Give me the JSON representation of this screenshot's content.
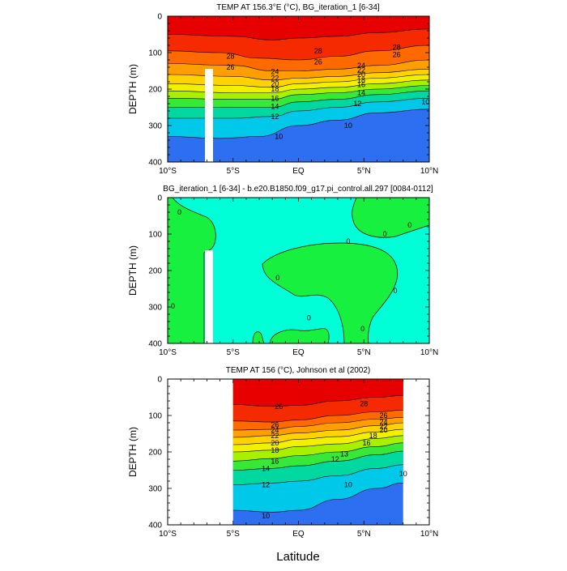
{
  "figure": {
    "xlabel": "Latitude",
    "xticks": [
      "10°S",
      "5°S",
      "EQ",
      "5°N",
      "10°N"
    ],
    "yticks": [
      "0",
      "100",
      "200",
      "300",
      "400"
    ]
  },
  "chart_data": [
    {
      "type": "contour",
      "title": "TEMP AT 156.3°E (°C), BG_iteration_1 [6-34]",
      "ylabel": "DEPTH (m)",
      "xlim": [
        -10,
        10
      ],
      "ylim": [
        400,
        0
      ],
      "isotherms": [
        {
          "level": 28,
          "points": [
            [
              -10,
              50
            ],
            [
              -5,
              55
            ],
            [
              -2,
              65
            ],
            [
              0,
              60
            ],
            [
              3,
              55
            ],
            [
              6,
              45
            ],
            [
              10,
              35
            ]
          ]
        },
        {
          "level": 26,
          "points": [
            [
              -10,
              95
            ],
            [
              -6,
              100
            ],
            [
              -3,
              115
            ],
            [
              0,
              120
            ],
            [
              3,
              110
            ],
            [
              6,
              95
            ],
            [
              10,
              80
            ]
          ]
        },
        {
          "level": 24,
          "points": [
            [
              -10,
              130
            ],
            [
              -5,
              135
            ],
            [
              -2,
              150
            ],
            [
              0,
              150
            ],
            [
              3,
              145
            ],
            [
              6,
              135
            ],
            [
              10,
              120
            ]
          ]
        },
        {
          "level": 22,
          "points": [
            [
              -10,
              160
            ],
            [
              -5,
              165
            ],
            [
              -2,
              175
            ],
            [
              0,
              170
            ],
            [
              3,
              165
            ],
            [
              6,
              155
            ],
            [
              10,
              145
            ]
          ]
        },
        {
          "level": 20,
          "points": [
            [
              -10,
              185
            ],
            [
              -5,
              190
            ],
            [
              -2,
              195
            ],
            [
              0,
              185
            ],
            [
              3,
              180
            ],
            [
              6,
              170
            ],
            [
              10,
              160
            ]
          ]
        },
        {
          "level": 18,
          "points": [
            [
              -10,
              205
            ],
            [
              -5,
              210
            ],
            [
              -2,
              210
            ],
            [
              0,
              200
            ],
            [
              3,
              195
            ],
            [
              6,
              185
            ],
            [
              10,
              175
            ]
          ]
        },
        {
          "level": 16,
          "points": [
            [
              -10,
              225
            ],
            [
              -5,
              228
            ],
            [
              -2,
              228
            ],
            [
              0,
              215
            ],
            [
              3,
              210
            ],
            [
              6,
              200
            ],
            [
              10,
              190
            ]
          ]
        },
        {
          "level": 14,
          "points": [
            [
              -10,
              250
            ],
            [
              -5,
              250
            ],
            [
              -2,
              250
            ],
            [
              0,
              235
            ],
            [
              3,
              228
            ],
            [
              6,
              215
            ],
            [
              10,
              205
            ]
          ]
        },
        {
          "level": 12,
          "points": [
            [
              -10,
              280
            ],
            [
              -5,
              280
            ],
            [
              -2,
              275
            ],
            [
              0,
              260
            ],
            [
              3,
              250
            ],
            [
              6,
              235
            ],
            [
              10,
              225
            ]
          ]
        },
        {
          "level": 10,
          "points": [
            [
              -10,
              330
            ],
            [
              -6,
              335
            ],
            [
              -3,
              330
            ],
            [
              0,
              300
            ],
            [
              3,
              285
            ],
            [
              6,
              265
            ],
            [
              10,
              255
            ]
          ]
        }
      ],
      "labels": [
        {
          "text": "28",
          "x": -5.2,
          "y": 110
        },
        {
          "text": "26",
          "x": -5.2,
          "y": 140
        },
        {
          "text": "28",
          "x": 1.5,
          "y": 95
        },
        {
          "text": "26",
          "x": 1.5,
          "y": 125
        },
        {
          "text": "28",
          "x": 7.5,
          "y": 85
        },
        {
          "text": "26",
          "x": 7.5,
          "y": 105
        },
        {
          "text": "24",
          "x": -1.8,
          "y": 152
        },
        {
          "text": "22",
          "x": -1.8,
          "y": 170
        },
        {
          "text": "20",
          "x": -1.8,
          "y": 185
        },
        {
          "text": "18",
          "x": -1.8,
          "y": 200
        },
        {
          "text": "16",
          "x": -1.8,
          "y": 225
        },
        {
          "text": "14",
          "x": -1.8,
          "y": 248
        },
        {
          "text": "12",
          "x": -1.8,
          "y": 275
        },
        {
          "text": "10",
          "x": -1.5,
          "y": 330
        },
        {
          "text": "24",
          "x": 4.8,
          "y": 135
        },
        {
          "text": "22",
          "x": 4.8,
          "y": 148
        },
        {
          "text": "20",
          "x": 4.8,
          "y": 160
        },
        {
          "text": "18",
          "x": 4.8,
          "y": 175
        },
        {
          "text": "16",
          "x": 4.8,
          "y": 188
        },
        {
          "text": "14",
          "x": 4.8,
          "y": 210
        },
        {
          "text": "12",
          "x": 4.5,
          "y": 240
        },
        {
          "text": "10",
          "x": 3.8,
          "y": 300
        },
        {
          "text": "10",
          "x": 9.7,
          "y": 235
        }
      ]
    },
    {
      "type": "contour",
      "title": "BG_iteration_1 [6-34] - b.e20.B1850.f09_g17.pi_control.all.297 [0084-0112]",
      "ylabel": "DEPTH (m)",
      "xlim": [
        -10,
        10
      ],
      "ylim": [
        400,
        0
      ],
      "levels": [
        0
      ],
      "labels": [
        {
          "text": "0",
          "x": -9.1,
          "y": 40
        },
        {
          "text": "0",
          "x": -9.6,
          "y": 298
        },
        {
          "text": "0",
          "x": -1.6,
          "y": 220
        },
        {
          "text": "0",
          "x": 0.8,
          "y": 330
        },
        {
          "text": "0",
          "x": 3.8,
          "y": 120
        },
        {
          "text": "0",
          "x": 6.6,
          "y": 100
        },
        {
          "text": "0",
          "x": 8.5,
          "y": 75
        },
        {
          "text": "0",
          "x": 7.4,
          "y": 255
        },
        {
          "text": "0",
          "x": 4.9,
          "y": 360
        }
      ]
    },
    {
      "type": "contour",
      "title": "TEMP AT 156 (°C), Johnson et al (2002)",
      "ylabel": "DEPTH (m)",
      "xlim": [
        -10,
        10
      ],
      "ylim": [
        400,
        0
      ],
      "data_xlim": [
        -5,
        8
      ],
      "isotherms": [
        {
          "level": 28,
          "points": [
            [
              -5,
              70
            ],
            [
              -2,
              75
            ],
            [
              0,
              72
            ],
            [
              3,
              60
            ],
            [
              6,
              50
            ],
            [
              8,
              45
            ]
          ]
        },
        {
          "level": 26,
          "points": [
            [
              -5,
              115
            ],
            [
              -2,
              118
            ],
            [
              0,
              112
            ],
            [
              3,
              100
            ],
            [
              6,
              90
            ],
            [
              8,
              85
            ]
          ]
        },
        {
          "level": 24,
          "points": [
            [
              -5,
              140
            ],
            [
              -2,
              138
            ],
            [
              0,
              130
            ],
            [
              3,
              120
            ],
            [
              6,
              110
            ],
            [
              8,
              105
            ]
          ]
        },
        {
          "level": 22,
          "points": [
            [
              -5,
              160
            ],
            [
              -2,
              155
            ],
            [
              0,
              148
            ],
            [
              3,
              140
            ],
            [
              6,
              128
            ],
            [
              8,
              120
            ]
          ]
        },
        {
          "level": 20,
          "points": [
            [
              -5,
              180
            ],
            [
              -2,
              175
            ],
            [
              0,
              165
            ],
            [
              3,
              158
            ],
            [
              6,
              145
            ],
            [
              8,
              138
            ]
          ]
        },
        {
          "level": 18,
          "points": [
            [
              -5,
              200
            ],
            [
              -2,
              195
            ],
            [
              0,
              185
            ],
            [
              3,
              178
            ],
            [
              6,
              163
            ],
            [
              8,
              155
            ]
          ]
        },
        {
          "level": 16,
          "points": [
            [
              -5,
              225
            ],
            [
              -2,
              218
            ],
            [
              0,
              210
            ],
            [
              3,
              200
            ],
            [
              6,
              185
            ],
            [
              8,
              175
            ]
          ]
        },
        {
          "level": 14,
          "points": [
            [
              -5,
              250
            ],
            [
              -2,
              245
            ],
            [
              0,
              238
            ],
            [
              3,
              225
            ],
            [
              6,
              208
            ],
            [
              8,
              198
            ]
          ]
        },
        {
          "level": 12,
          "points": [
            [
              -5,
              290
            ],
            [
              -2,
              285
            ],
            [
              0,
              280
            ],
            [
              3,
              265
            ],
            [
              6,
              245
            ],
            [
              8,
              235
            ]
          ]
        },
        {
          "level": 10,
          "points": [
            [
              -5,
              360
            ],
            [
              -2,
              365
            ],
            [
              0,
              360
            ],
            [
              3,
              330
            ],
            [
              6,
              300
            ],
            [
              8,
              285
            ]
          ]
        }
      ],
      "labels": [
        {
          "text": "26",
          "x": -1.5,
          "y": 75
        },
        {
          "text": "28",
          "x": 5.0,
          "y": 68
        },
        {
          "text": "26",
          "x": -1.8,
          "y": 125
        },
        {
          "text": "24",
          "x": -1.8,
          "y": 140
        },
        {
          "text": "22",
          "x": -1.8,
          "y": 155
        },
        {
          "text": "20",
          "x": -1.8,
          "y": 175
        },
        {
          "text": "18",
          "x": -1.8,
          "y": 195
        },
        {
          "text": "16",
          "x": -1.8,
          "y": 225
        },
        {
          "text": "14",
          "x": -2.5,
          "y": 245
        },
        {
          "text": "12",
          "x": -2.5,
          "y": 290
        },
        {
          "text": "10",
          "x": -2.5,
          "y": 375
        },
        {
          "text": "26",
          "x": 6.5,
          "y": 100
        },
        {
          "text": "24",
          "x": 6.5,
          "y": 118
        },
        {
          "text": "22",
          "x": 6.5,
          "y": 130
        },
        {
          "text": "20",
          "x": 6.5,
          "y": 140
        },
        {
          "text": "18",
          "x": 5.7,
          "y": 155
        },
        {
          "text": "16",
          "x": 5.2,
          "y": 175
        },
        {
          "text": "13",
          "x": 3.5,
          "y": 205
        },
        {
          "text": "12",
          "x": 2.8,
          "y": 220
        },
        {
          "text": "10",
          "x": 3.8,
          "y": 290
        },
        {
          "text": "10",
          "x": 8.0,
          "y": 260
        }
      ]
    }
  ]
}
